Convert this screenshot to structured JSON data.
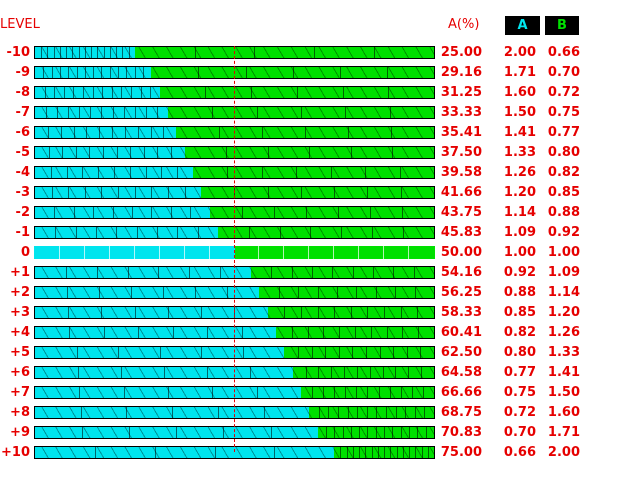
{
  "header": {
    "level_label": "LEVEL",
    "a_percent_label": "A(%)",
    "col_a_label": "A",
    "col_b_label": "B"
  },
  "colors": {
    "accent_text": "#e60000",
    "a_fill": "#00e5ee",
    "b_fill": "#00e000",
    "col_a_text": "#00e5ee",
    "col_b_text": "#00e000"
  },
  "rows": [
    {
      "level": "-10",
      "a_percent": "25.00",
      "a": "2.00",
      "b": "0.66",
      "fill_pct": 25.0
    },
    {
      "level": "-9",
      "a_percent": "29.16",
      "a": "1.71",
      "b": "0.70",
      "fill_pct": 29.16
    },
    {
      "level": "-8",
      "a_percent": "31.25",
      "a": "1.60",
      "b": "0.72",
      "fill_pct": 31.25
    },
    {
      "level": "-7",
      "a_percent": "33.33",
      "a": "1.50",
      "b": "0.75",
      "fill_pct": 33.33
    },
    {
      "level": "-6",
      "a_percent": "35.41",
      "a": "1.41",
      "b": "0.77",
      "fill_pct": 35.41
    },
    {
      "level": "-5",
      "a_percent": "37.50",
      "a": "1.33",
      "b": "0.80",
      "fill_pct": 37.5
    },
    {
      "level": "-4",
      "a_percent": "39.58",
      "a": "1.26",
      "b": "0.82",
      "fill_pct": 39.58
    },
    {
      "level": "-3",
      "a_percent": "41.66",
      "a": "1.20",
      "b": "0.85",
      "fill_pct": 41.66
    },
    {
      "level": "-2",
      "a_percent": "43.75",
      "a": "1.14",
      "b": "0.88",
      "fill_pct": 43.75
    },
    {
      "level": "-1",
      "a_percent": "45.83",
      "a": "1.09",
      "b": "0.92",
      "fill_pct": 45.83
    },
    {
      "level": "0",
      "a_percent": "50.00",
      "a": "1.00",
      "b": "1.00",
      "fill_pct": 50.0
    },
    {
      "level": "+1",
      "a_percent": "54.16",
      "a": "0.92",
      "b": "1.09",
      "fill_pct": 54.16
    },
    {
      "level": "+2",
      "a_percent": "56.25",
      "a": "0.88",
      "b": "1.14",
      "fill_pct": 56.25
    },
    {
      "level": "+3",
      "a_percent": "58.33",
      "a": "0.85",
      "b": "1.20",
      "fill_pct": 58.33
    },
    {
      "level": "+4",
      "a_percent": "60.41",
      "a": "0.82",
      "b": "1.26",
      "fill_pct": 60.41
    },
    {
      "level": "+5",
      "a_percent": "62.50",
      "a": "0.80",
      "b": "1.33",
      "fill_pct": 62.5
    },
    {
      "level": "+6",
      "a_percent": "64.58",
      "a": "0.77",
      "b": "1.41",
      "fill_pct": 64.58
    },
    {
      "level": "+7",
      "a_percent": "66.66",
      "a": "0.75",
      "b": "1.50",
      "fill_pct": 66.66
    },
    {
      "level": "+8",
      "a_percent": "68.75",
      "a": "0.72",
      "b": "1.60",
      "fill_pct": 68.75
    },
    {
      "level": "+9",
      "a_percent": "70.83",
      "a": "0.70",
      "b": "1.71",
      "fill_pct": 70.83
    },
    {
      "level": "+10",
      "a_percent": "75.00",
      "a": "0.66",
      "b": "2.00",
      "fill_pct": 75.0
    }
  ]
}
